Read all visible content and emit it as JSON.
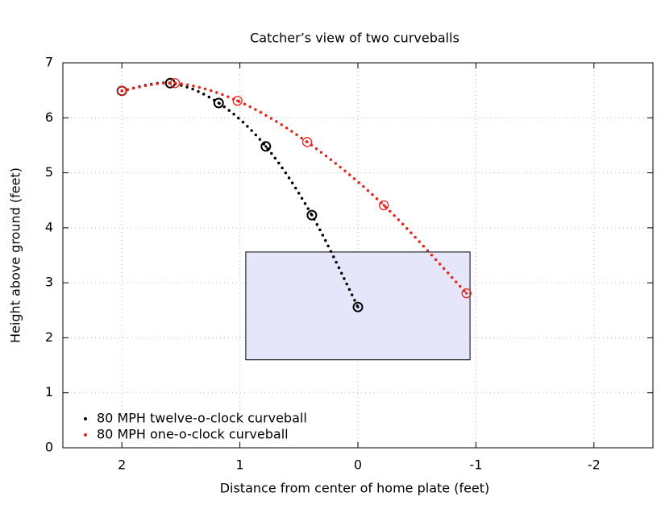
{
  "chart_data": {
    "type": "line",
    "title": "Catcher’s view of two curveballs",
    "x_label": "Distance from center of home plate (feet)",
    "y_label": "Height above ground (feet)",
    "xlim": [
      2.5,
      -2.5
    ],
    "ylim": [
      0,
      7
    ],
    "xticks": [
      2,
      1,
      0,
      -1,
      -2
    ],
    "yticks": [
      0,
      1,
      2,
      3,
      4,
      5,
      6,
      7
    ],
    "grid": true,
    "legend": "lower left",
    "strike_zone": {
      "x": [
        0.95,
        -0.95
      ],
      "y": [
        1.6,
        3.56
      ],
      "color": "#e6e6fa"
    },
    "series": [
      {
        "name": "80 MPH twelve-o-clock curveball",
        "color": "#000000",
        "x": [
          2.0,
          1.59,
          1.18,
          0.78,
          0.39,
          0.0
        ],
        "values": [
          6.49,
          6.63,
          6.27,
          5.48,
          4.23,
          2.56
        ]
      },
      {
        "name": "80 MPH one-o-clock curveball",
        "color": "#e8231a",
        "x": [
          2.0,
          1.55,
          1.02,
          0.43,
          -0.22,
          -0.92
        ],
        "values": [
          6.49,
          6.63,
          6.31,
          5.56,
          4.41,
          2.81
        ]
      }
    ]
  }
}
